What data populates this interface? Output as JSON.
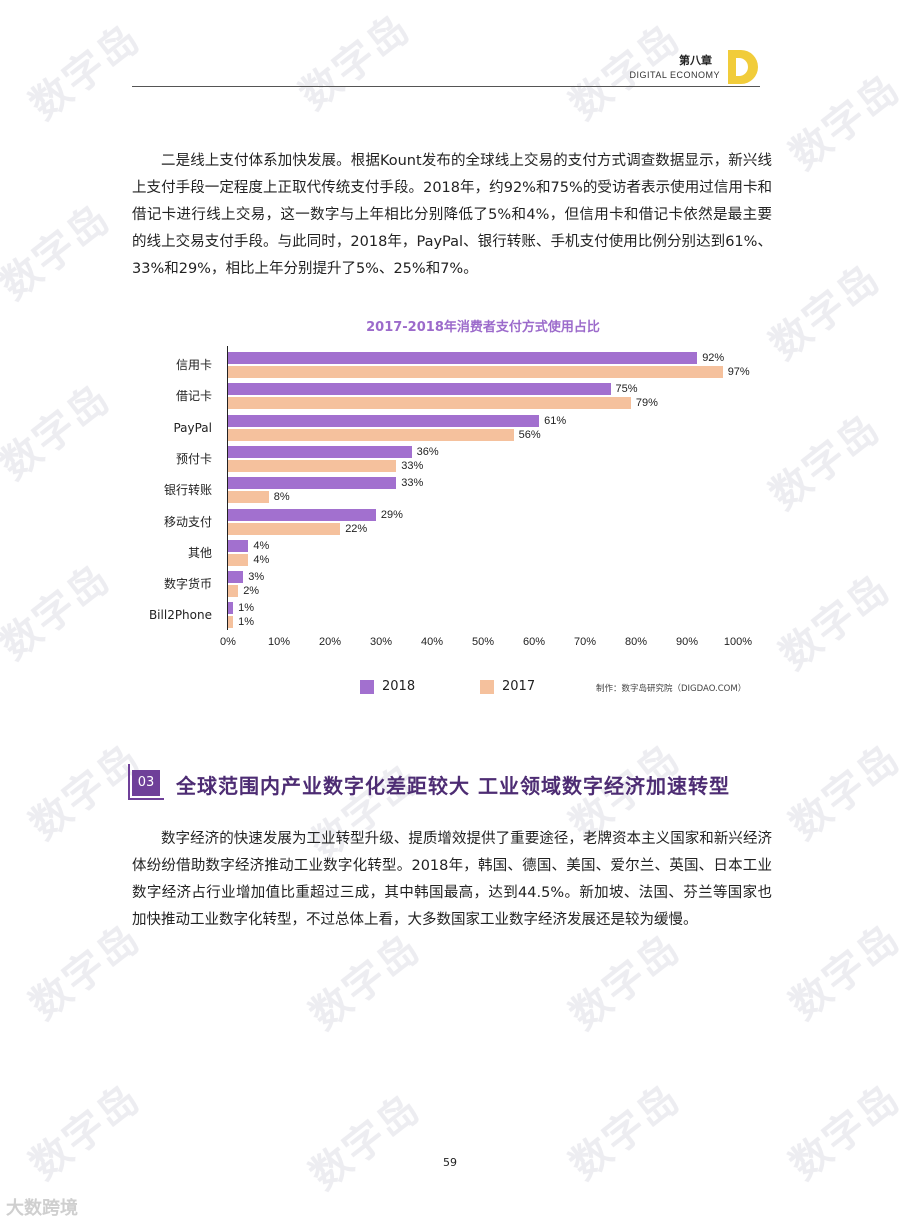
{
  "watermark": "数字岛",
  "header": {
    "chapter": "第八章",
    "subtitle": "DIGITAL ECONOMY"
  },
  "paragraphs": {
    "p1": "二是线上支付体系加快发展。根据Kount发布的全球线上交易的支付方式调查数据显示，新兴线上支付手段一定程度上正取代传统支付手段。2018年，约92%和75%的受访者表示使用过信用卡和借记卡进行线上交易，这一数字与上年相比分别降低了5%和4%，但信用卡和借记卡依然是最主要的线上交易支付手段。与此同时，2018年，PayPal、银行转账、手机支付使用比例分别达到61%、33%和29%，相比上年分别提升了5%、25%和7%。",
    "p2": "数字经济的快速发展为工业转型升级、提质增效提供了重要途径，老牌资本主义国家和新兴经济体纷纷借助数字经济推动工业数字化转型。2018年，韩国、德国、美国、爱尔兰、英国、日本工业数字经济占行业增加值比重超过三成，其中韩国最高，达到44.5%。新加坡、法国、芬兰等国家也加快推动工业数字化转型，不过总体上看，大多数国家工业数字经济发展还是较为缓慢。"
  },
  "chart_data": {
    "type": "bar",
    "orientation": "horizontal",
    "title": "2017-2018年消费者支付方式使用占比",
    "categories": [
      "信用卡",
      "借记卡",
      "PayPal",
      "预付卡",
      "银行转账",
      "移动支付",
      "其他",
      "数字货币",
      "Bill2Phone"
    ],
    "series": [
      {
        "name": "2018",
        "color": "#a270cf",
        "values": [
          92,
          75,
          61,
          36,
          33,
          29,
          4,
          3,
          1
        ]
      },
      {
        "name": "2017",
        "color": "#f5c19d",
        "values": [
          97,
          79,
          56,
          33,
          8,
          22,
          4,
          2,
          1
        ]
      }
    ],
    "value_suffix": "%",
    "xlim": [
      0,
      100
    ],
    "xticks": [
      "0%",
      "10%",
      "20%",
      "30%",
      "40%",
      "50%",
      "60%",
      "70%",
      "80%",
      "90%",
      "100%"
    ],
    "legend_position": "bottom",
    "credit": "制作：数字岛研究院（DIGDAO.COM）"
  },
  "section": {
    "number": "03",
    "title": "全球范围内产业数字化差距较大  工业领域数字经济加速转型"
  },
  "page_number": "59",
  "corner_watermark": "大数跨境"
}
